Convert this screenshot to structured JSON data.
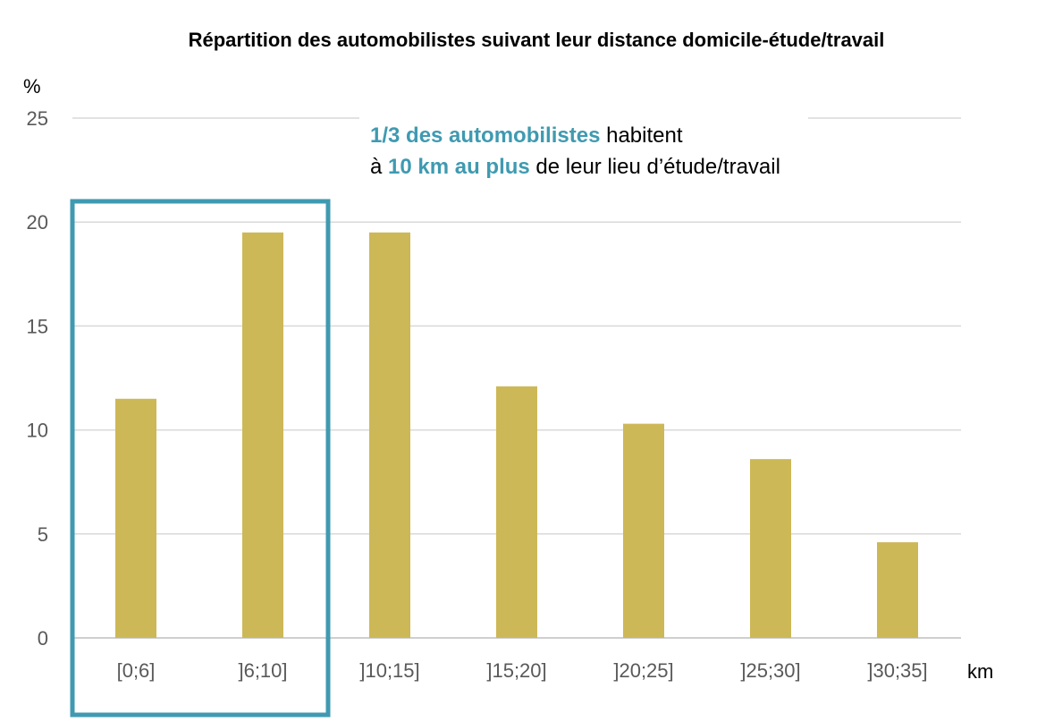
{
  "chart_data": {
    "type": "bar",
    "title": "Répartition des automobilistes suivant leur distance domicile-étude/travail",
    "ylabel": "%",
    "xlabel": "km",
    "ylim": [
      0,
      25
    ],
    "yticks": [
      0,
      5,
      10,
      15,
      20,
      25
    ],
    "grid": true,
    "categories": [
      "[0;6]",
      "]6;10]",
      "]10;15]",
      "]15;20]",
      "]20;25]",
      "]25;30]",
      "]30;35]"
    ],
    "values": [
      11.5,
      19.5,
      19.5,
      12.1,
      10.3,
      8.6,
      4.6
    ],
    "highlight_categories": [
      "[0;6]",
      "]6;10]"
    ],
    "annotation": {
      "line1_highlight": "1/3 des automobilistes",
      "line1_rest": " habitent",
      "line2_prefix": "à ",
      "line2_highlight": "10 km au plus",
      "line2_rest": " de leur lieu d’étude/travail"
    }
  },
  "colors": {
    "bar": "#cdb857",
    "highlight": "#3f9ab1",
    "grid": "#d9d9d9",
    "tick_text": "#595959"
  }
}
